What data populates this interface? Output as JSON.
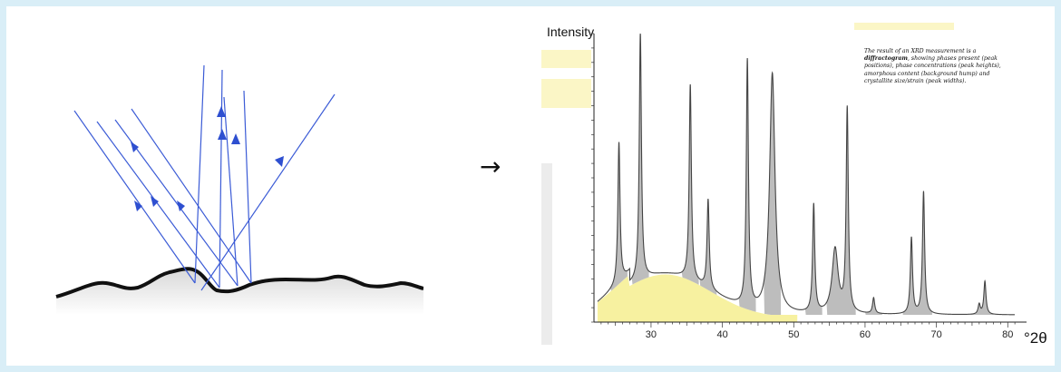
{
  "arrow": {
    "symbol": "→"
  },
  "diffractogram": {
    "y_label": "Intensity",
    "x_unit": "°2θ",
    "note_parts": [
      "The result of an XRD measurement is a ",
      "diffractogram",
      ", showing phases present (peak positions), phase concentrations (peak heights), amorphous content (background hump) and crystallite size/strain (peak widths)."
    ]
  },
  "chart_data": {
    "type": "line",
    "title": "",
    "xlabel": "°2θ",
    "ylabel": "Intensity",
    "xlim": [
      22,
      82
    ],
    "ylim": [
      0,
      100
    ],
    "x_ticks": [
      30,
      40,
      50,
      60,
      70,
      80
    ],
    "peaks": [
      {
        "x": 25.5,
        "y": 62
      },
      {
        "x": 28.5,
        "y": 100
      },
      {
        "x": 35.5,
        "y": 82
      },
      {
        "x": 38.0,
        "y": 42
      },
      {
        "x": 43.5,
        "y": 90
      },
      {
        "x": 47.0,
        "y": 86
      },
      {
        "x": 52.8,
        "y": 40
      },
      {
        "x": 55.8,
        "y": 25
      },
      {
        "x": 57.5,
        "y": 73
      },
      {
        "x": 61.2,
        "y": 8
      },
      {
        "x": 66.5,
        "y": 29
      },
      {
        "x": 68.2,
        "y": 45
      },
      {
        "x": 76.0,
        "y": 6
      },
      {
        "x": 76.8,
        "y": 14
      }
    ],
    "amorphous_hump": "yellow shaded background hump around 25–50 °2θ",
    "colors": {
      "curve": "#444444",
      "peak_fill": "#bdbdbd",
      "hump_fill": "#f7f1a0"
    }
  }
}
